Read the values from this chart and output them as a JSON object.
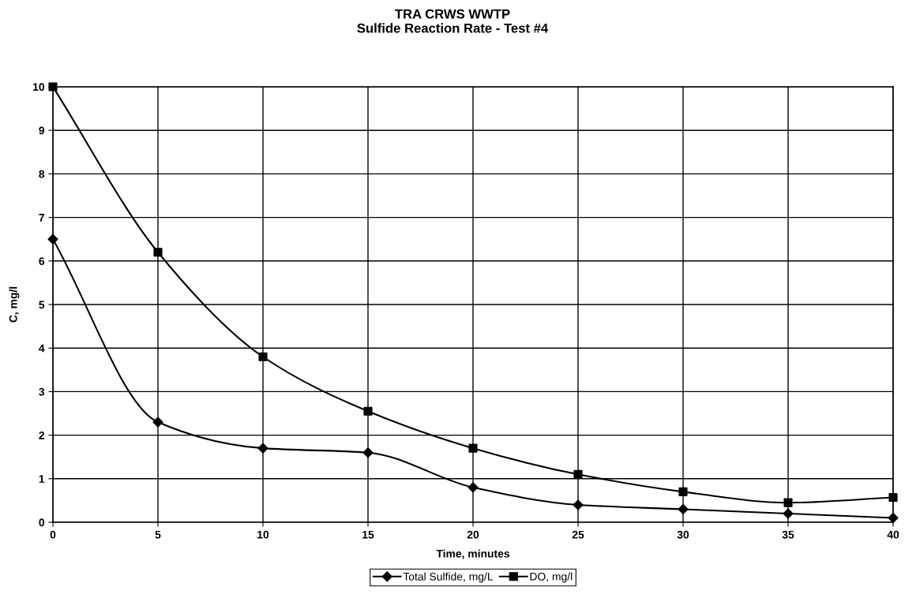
{
  "chart_data": {
    "type": "line",
    "title": "TRA CRWS WWTP\nSulfide Reaction Rate - Test #4",
    "xlabel": "Time, minutes",
    "ylabel": "C, mg/l",
    "x": [
      0,
      5,
      10,
      15,
      20,
      25,
      30,
      35,
      40
    ],
    "series": [
      {
        "name": "Total Sulfide, mg/L",
        "color": "#000000",
        "marker": "diamond",
        "values": [
          6.5,
          2.3,
          1.7,
          1.6,
          0.8,
          0.4,
          0.3,
          0.2,
          0.1
        ]
      },
      {
        "name": "DO, mg/l",
        "color": "#000000",
        "marker": "square",
        "values": [
          10,
          6.2,
          3.8,
          2.55,
          1.7,
          1.1,
          0.7,
          0.45,
          0.57
        ]
      }
    ],
    "xlim": [
      0,
      40
    ],
    "xticks": [
      0,
      5,
      10,
      15,
      20,
      25,
      30,
      35,
      40
    ],
    "ylim": [
      0,
      10
    ],
    "yticks": [
      0,
      1,
      2,
      3,
      4,
      5,
      6,
      7,
      8,
      9,
      10
    ],
    "grid": true,
    "legend": "bottom",
    "line_style": "solid"
  }
}
